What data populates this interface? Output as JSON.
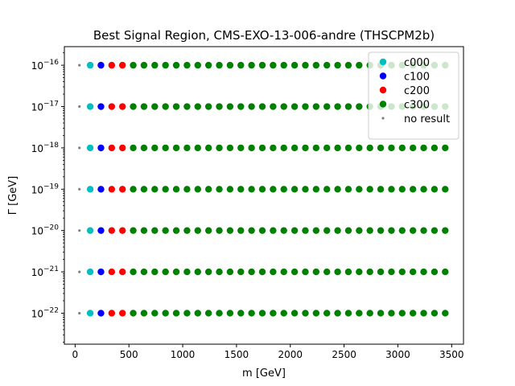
{
  "chart_data": {
    "type": "scatter",
    "title": "Best Signal Region, CMS-EXO-13-006-andre (THSCPM2b)",
    "xlabel": "m [GeV]",
    "ylabel": "Γ [GeV]",
    "xlim": [
      -100,
      3610
    ],
    "ylim_log10": [
      -22.75,
      -15.55
    ],
    "yscale": "log",
    "x_ticks": [
      0,
      500,
      1000,
      1500,
      2000,
      2500,
      3000,
      3500
    ],
    "x_tick_labels": [
      "0",
      "500",
      "1000",
      "1500",
      "2000",
      "2500",
      "3000",
      "3500"
    ],
    "y_ticks_log10": [
      -22,
      -21,
      -20,
      -19,
      -18,
      -17,
      -16
    ],
    "y_tick_labels": [
      {
        "base": "10",
        "exp": "−22"
      },
      {
        "base": "10",
        "exp": "−21"
      },
      {
        "base": "10",
        "exp": "−20"
      },
      {
        "base": "10",
        "exp": "−19"
      },
      {
        "base": "10",
        "exp": "−18"
      },
      {
        "base": "10",
        "exp": "−17"
      },
      {
        "base": "10",
        "exp": "−16"
      }
    ],
    "y_values": [
      "1e-22",
      "1e-21",
      "1e-20",
      "1e-19",
      "1e-18",
      "1e-17",
      "1e-16"
    ],
    "grid": false,
    "legend_position": "top-right",
    "series": [
      {
        "name": "c000",
        "color": "#00bfbf",
        "marker": "circle",
        "x": [
          140
        ]
      },
      {
        "name": "c100",
        "color": "#0000ff",
        "marker": "circle",
        "x": [
          240
        ]
      },
      {
        "name": "c200",
        "color": "#ff0000",
        "marker": "circle",
        "x": [
          340,
          440
        ]
      },
      {
        "name": "c300",
        "color": "#008000",
        "marker": "circle",
        "x": [
          540,
          640,
          740,
          840,
          940,
          1040,
          1140,
          1240,
          1340,
          1440,
          1540,
          1640,
          1740,
          1840,
          1940,
          2040,
          2140,
          2240,
          2340,
          2440,
          2540,
          2640,
          2740,
          2840,
          2940,
          3040,
          3140,
          3240,
          3340,
          3440
        ]
      },
      {
        "name": "no result",
        "color": "#808080",
        "marker": "small-dot",
        "x": [
          40
        ]
      }
    ]
  }
}
